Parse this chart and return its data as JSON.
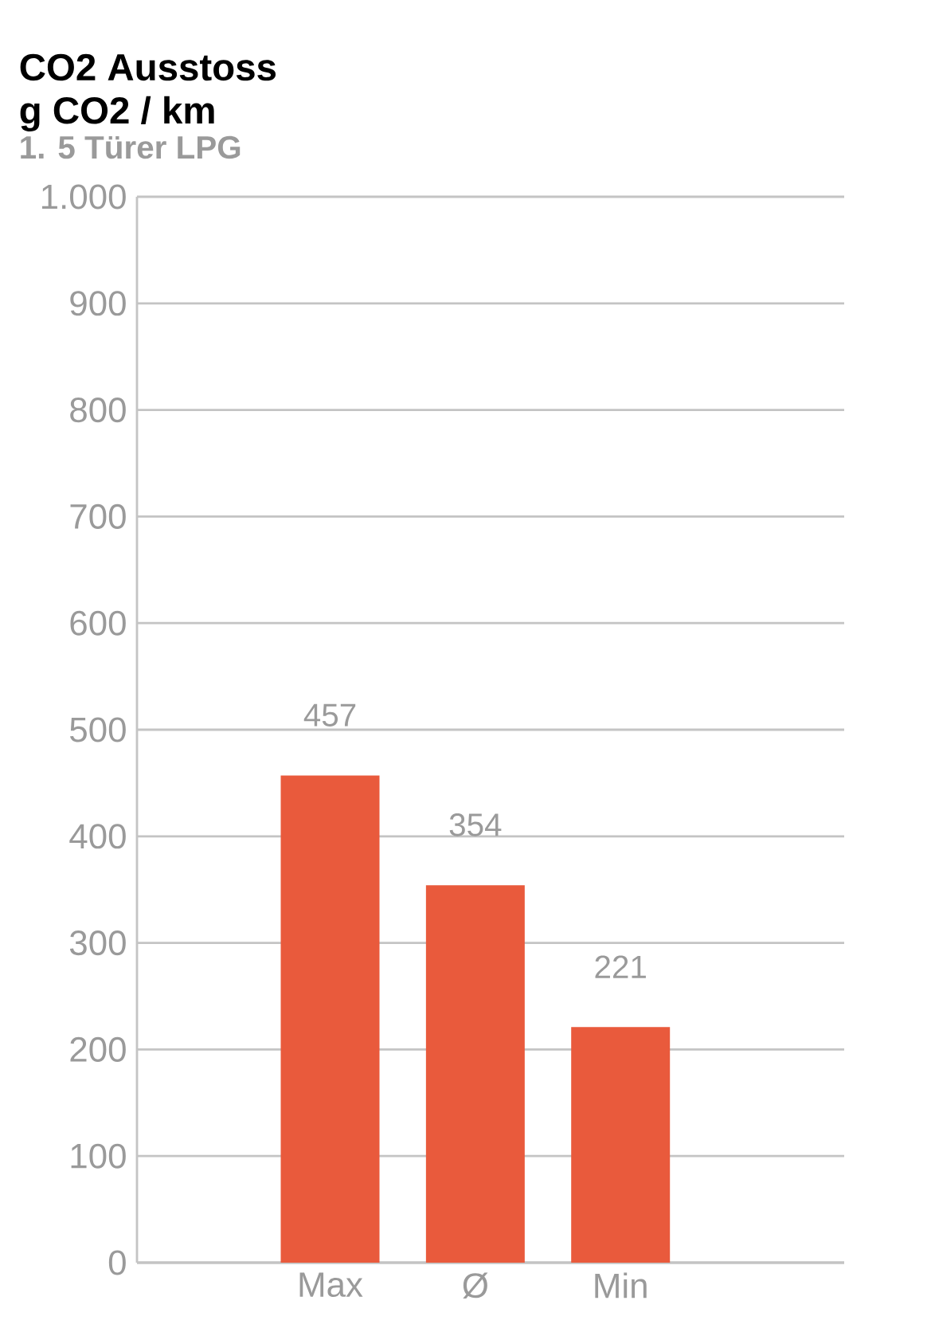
{
  "chart_data": {
    "type": "bar",
    "title": "CO2 Ausstoss",
    "ylabel": "g CO2 / km",
    "subtitle": "1. 5 Türer LPG",
    "categories": [
      "Max",
      "Ø",
      "Min"
    ],
    "values": [
      457,
      354,
      221
    ],
    "color": "#e95a3c",
    "data_labels": true,
    "ylim": [
      0,
      1000
    ],
    "yticks": [
      0,
      100,
      200,
      300,
      400,
      500,
      600,
      700,
      800,
      900,
      {
        "value": 1000,
        "label": "1.000"
      }
    ],
    "grid": "y"
  }
}
